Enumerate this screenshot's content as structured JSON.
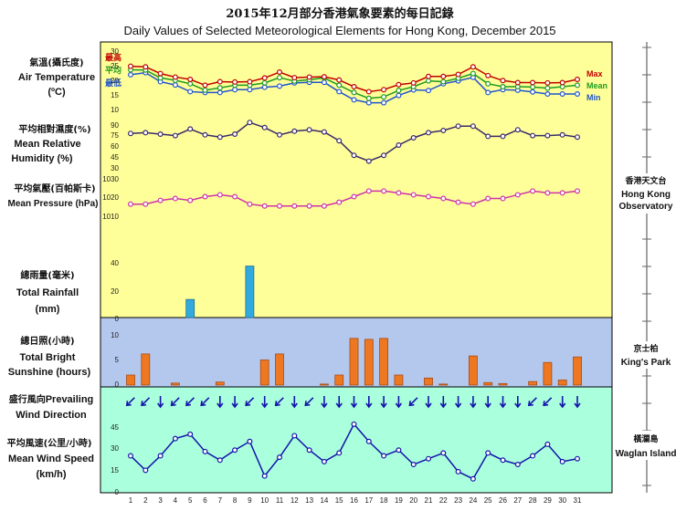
{
  "title_cn": "2015年12月部分香港氣象要素的每日記錄",
  "title_en": "Daily Values of Selected Meteorological Elements for Hong Kong, December 2015",
  "panels": {
    "temp": {
      "label_cn": "氣溫(攝氏度)",
      "label_en1": "Air Temperature",
      "label_en2": "(ºC)",
      "legend_cn": [
        "最高",
        "平均",
        "最低"
      ],
      "legend_en": [
        "Max",
        "Mean",
        "Min"
      ],
      "ticks": [
        "30",
        "25",
        "20",
        "15",
        "10"
      ]
    },
    "humidity": {
      "label_cn": "平均相對濕度(%)",
      "label_en1": "Mean Relative",
      "label_en2": "Humidity (%)",
      "ticks": [
        "90",
        "75",
        "60",
        "45",
        "30"
      ]
    },
    "pressure": {
      "label_cn": "平均氣壓(百帕斯卡)",
      "label_en1": "Mean Pressure (hPa)",
      "ticks": [
        "1030",
        "1020",
        "1010"
      ]
    },
    "rainfall": {
      "label_cn": "總雨量(毫米)",
      "label_en1": "Total Rainfall",
      "label_en2": "(mm)",
      "ticks": [
        "40",
        "20",
        "0"
      ]
    },
    "sunshine": {
      "label_cn": "總日照(小時)",
      "label_en1": "Total Bright",
      "label_en2": "Sunshine (hours)",
      "ticks": [
        "10",
        "5",
        "0"
      ]
    },
    "wind_dir": {
      "label_cn": "盛行風向",
      "label_en1": "Prevailing",
      "label_en2": "Wind Direction"
    },
    "wind_speed": {
      "label_cn": "平均風速(公里/小時)",
      "label_en1": "Mean Wind Speed",
      "label_en2": "(km/h)",
      "ticks": [
        "45",
        "30",
        "15",
        "0"
      ]
    }
  },
  "stations": {
    "hko": {
      "cn": "香港天文台",
      "en1": "Hong Kong",
      "en2": "Observatory"
    },
    "kp": {
      "cn": "京士柏",
      "en": "King's Park"
    },
    "wi": {
      "cn": "橫瀾島",
      "en": "Waglan Island"
    }
  },
  "colors": {
    "top_bg": "#ffff99",
    "mid_bg": "#b4c8ee",
    "bot_bg": "#aaffdd",
    "max": "#c00000",
    "mean": "#1f9a1f",
    "min": "#2255cc",
    "humidity": "#3a2a6a",
    "pressure": "#cc33aa",
    "rain": "#33aadd",
    "sun": "#ee7722",
    "wind": "#1414aa"
  },
  "chart_data": {
    "type": "line",
    "x": [
      1,
      2,
      3,
      4,
      5,
      6,
      7,
      8,
      9,
      10,
      11,
      12,
      13,
      14,
      15,
      16,
      17,
      18,
      19,
      20,
      21,
      22,
      23,
      24,
      25,
      26,
      27,
      28,
      29,
      30,
      31
    ],
    "xlabels": [
      "1",
      "2",
      "3",
      "4",
      "5",
      "6",
      "7",
      "8",
      "9",
      "10",
      "11",
      "12",
      "13",
      "14",
      "15",
      "16",
      "17",
      "18",
      "19",
      "20",
      "21",
      "22",
      "23",
      "24",
      "25",
      "26",
      "27",
      "28",
      "29",
      "30",
      "31"
    ],
    "series": [
      {
        "name": "Max",
        "unit": "ºC",
        "ylim": [
          10,
          30
        ],
        "values": [
          24.5,
          24.3,
          22,
          20.8,
          20,
          18,
          19.2,
          19.1,
          19.2,
          20.5,
          22.5,
          20.6,
          20.8,
          20.9,
          19.8,
          17.5,
          15.8,
          16.5,
          18.2,
          18.8,
          21,
          21,
          21.7,
          24.3,
          21.3,
          19.6,
          18.9,
          18.9,
          18.8,
          18.9,
          20
        ]
      },
      {
        "name": "Mean",
        "unit": "ºC",
        "ylim": [
          10,
          30
        ],
        "values": [
          23.3,
          23.2,
          20.5,
          19.7,
          18.5,
          16.3,
          17.1,
          18,
          18,
          18.8,
          20.6,
          19.4,
          19.9,
          20.5,
          18,
          15.5,
          13.5,
          14,
          16.2,
          17.5,
          19.5,
          19.2,
          20.4,
          22,
          18.5,
          17.5,
          17.5,
          17.4,
          17,
          17.5,
          18
        ]
      },
      {
        "name": "Min",
        "unit": "ºC",
        "ylim": [
          10,
          30
        ],
        "values": [
          21.6,
          22.3,
          19.2,
          18.1,
          15.8,
          15.5,
          15.5,
          16.5,
          16.5,
          17.3,
          17.7,
          18.8,
          19,
          19,
          15.8,
          13,
          12,
          12,
          14.5,
          16.4,
          16.2,
          18.5,
          19.5,
          20.7,
          15.5,
          16.5,
          16.3,
          15.7,
          15,
          15,
          15
        ]
      },
      {
        "name": "Mean Relative Humidity",
        "unit": "%",
        "ylim": [
          30,
          90
        ],
        "values": [
          76,
          77,
          75,
          73,
          82,
          74,
          71,
          75,
          91,
          84,
          74,
          79,
          81,
          78,
          66,
          46,
          38,
          46,
          60,
          70,
          77,
          80,
          86,
          86,
          72,
          72,
          81,
          73,
          73,
          74,
          71
        ]
      },
      {
        "name": "Mean Pressure",
        "unit": "hPa",
        "ylim": [
          1010,
          1030
        ],
        "values": [
          1016,
          1016,
          1018,
          1019,
          1018,
          1020,
          1021,
          1020,
          1016,
          1015,
          1015,
          1015,
          1015,
          1015,
          1017,
          1020,
          1023,
          1023,
          1022,
          1021,
          1020,
          1019,
          1017,
          1016,
          1019,
          1019,
          1021,
          1023,
          1022,
          1022,
          1023
        ]
      },
      {
        "name": "Total Rainfall",
        "unit": "mm",
        "ylim": [
          0,
          50
        ],
        "type": "bar",
        "values": [
          0,
          0,
          0,
          0,
          13,
          0,
          0,
          0,
          37,
          0,
          0,
          0,
          0,
          0,
          0,
          0,
          0,
          0,
          0,
          0,
          0,
          0,
          0,
          0,
          0,
          0,
          0,
          0,
          0,
          0,
          0
        ]
      },
      {
        "name": "Total Bright Sunshine",
        "unit": "hours",
        "ylim": [
          0,
          12
        ],
        "type": "bar",
        "values": [
          2,
          6.2,
          0,
          0.4,
          0,
          0,
          0.6,
          0,
          0,
          5,
          6.2,
          0,
          0,
          0.2,
          2,
          9.3,
          9.1,
          9.3,
          2,
          0,
          1.4,
          0.2,
          0,
          5.8,
          0.5,
          0.3,
          0,
          0.7,
          4.5,
          1,
          5.6
        ]
      },
      {
        "name": "Mean Wind Speed",
        "unit": "km/h",
        "ylim": [
          0,
          55
        ],
        "values": [
          25,
          15,
          25,
          37,
          40,
          28,
          22,
          29,
          35,
          11,
          24,
          39,
          29,
          21,
          27,
          47,
          35,
          25,
          29,
          19,
          23,
          27,
          14,
          9,
          27,
          22,
          19,
          25,
          33,
          21,
          23
        ]
      },
      {
        "name": "Prevailing Wind Direction",
        "unit": "deg_from",
        "values": [
          45,
          45,
          0,
          45,
          45,
          45,
          0,
          0,
          45,
          0,
          45,
          0,
          45,
          0,
          0,
          0,
          0,
          0,
          0,
          45,
          0,
          0,
          0,
          0,
          0,
          0,
          0,
          45,
          45,
          0,
          0
        ]
      }
    ]
  }
}
